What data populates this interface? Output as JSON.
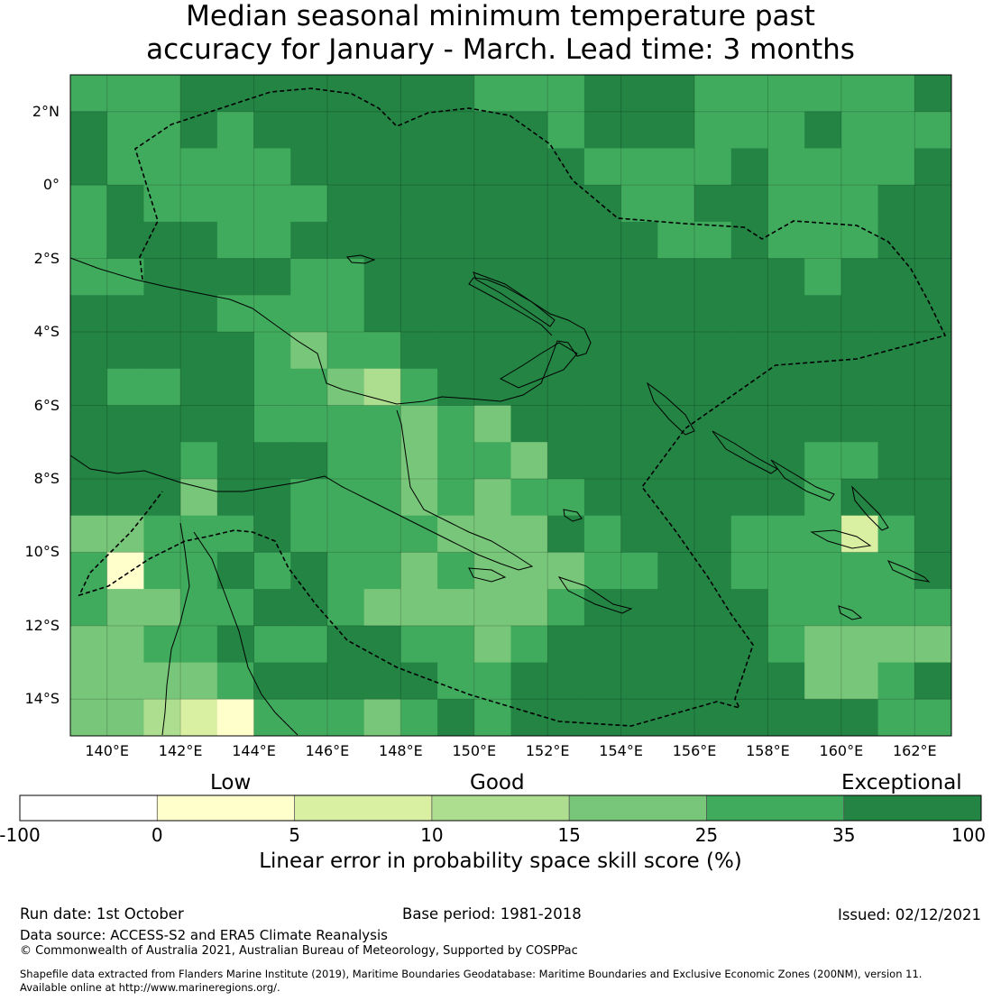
{
  "title": {
    "line1": "Median seasonal minimum temperature past",
    "line2": "accuracy for January - March. Lead time: 3 months"
  },
  "axes": {
    "lat_labels": [
      "2°N",
      "0°",
      "2°S",
      "4°S",
      "6°S",
      "8°S",
      "10°S",
      "12°S",
      "14°S"
    ],
    "lat_values": [
      2,
      0,
      -2,
      -4,
      -6,
      -8,
      -10,
      -12,
      -14
    ],
    "lon_labels": [
      "140°E",
      "142°E",
      "144°E",
      "146°E",
      "148°E",
      "150°E",
      "152°E",
      "154°E",
      "156°E",
      "158°E",
      "160°E",
      "162°E"
    ],
    "lon_values": [
      140,
      142,
      144,
      146,
      148,
      150,
      152,
      154,
      156,
      158,
      160,
      162
    ],
    "lon_range": [
      139.0,
      163.0
    ],
    "lat_range": [
      -15.0,
      3.0
    ]
  },
  "legend": {
    "categories": [
      "Low",
      "Good",
      "Exceptional"
    ],
    "ticks": [
      "-100",
      "0",
      "5",
      "10",
      "15",
      "25",
      "35",
      "100"
    ],
    "bins": [
      {
        "from": -100,
        "to": 0,
        "color": "#ffffff"
      },
      {
        "from": 0,
        "to": 5,
        "color": "#ffffcc"
      },
      {
        "from": 5,
        "to": 10,
        "color": "#d9f0a3"
      },
      {
        "from": 10,
        "to": 15,
        "color": "#addd8e"
      },
      {
        "from": 15,
        "to": 25,
        "color": "#78c679"
      },
      {
        "from": 25,
        "to": 35,
        "color": "#41ab5d"
      },
      {
        "from": 35,
        "to": 100,
        "color": "#238443"
      }
    ],
    "title": "Linear error in probability space skill score (%)"
  },
  "footer": {
    "run_date": "Run date: 1st October",
    "base_period": "Base period: 1981-2018",
    "issued": "Issued: 02/12/2021",
    "data_source": "Data source: ACCESS-S2 and ERA5 Climate Reanalysis",
    "copyright": "© Commonwealth of Australia 2021, Australian Bureau of Meteorology, Supported by COSPPac",
    "shapefile_line1": "Shapefile data extracted from Flanders Marine Institute (2019), Maritime Boundaries Geodatabase: Maritime Boundaries and Exclusive Economic Zones (200NM), version 11.",
    "shapefile_line2": "Available online at http://www.marineregions.org/."
  },
  "chart_data": {
    "type": "heatmap",
    "value_type": "LEPS skill score category index (0=-100..0, 1=0..5, 2=5..10, 3=10..15, 4=15..25, 5=25..35, 6=35..100)",
    "dominant_level": 6,
    "rows": 18,
    "cols": 24,
    "grid_origin": {
      "lon_west": 139.0,
      "lat_north": 3.0
    },
    "cell_size_deg": 1.0,
    "levels": [
      [
        5,
        5,
        5,
        6,
        6,
        6,
        6,
        6,
        6,
        6,
        6,
        5,
        5,
        5,
        6,
        6,
        6,
        5,
        5,
        5,
        5,
        5,
        5,
        6
      ],
      [
        6,
        5,
        5,
        6,
        5,
        6,
        6,
        6,
        6,
        6,
        6,
        6,
        6,
        5,
        6,
        6,
        6,
        5,
        5,
        5,
        6,
        5,
        5,
        5
      ],
      [
        6,
        5,
        5,
        5,
        5,
        5,
        6,
        6,
        6,
        6,
        6,
        6,
        6,
        6,
        5,
        5,
        5,
        5,
        6,
        5,
        5,
        5,
        5,
        6
      ],
      [
        5,
        6,
        5,
        5,
        5,
        5,
        5,
        6,
        6,
        6,
        6,
        6,
        6,
        6,
        6,
        5,
        5,
        6,
        6,
        5,
        5,
        5,
        6,
        6
      ],
      [
        5,
        6,
        6,
        6,
        5,
        5,
        6,
        6,
        6,
        6,
        6,
        6,
        6,
        6,
        6,
        6,
        5,
        5,
        6,
        5,
        5,
        5,
        6,
        6
      ],
      [
        5,
        5,
        6,
        6,
        6,
        6,
        5,
        5,
        6,
        6,
        6,
        6,
        6,
        6,
        6,
        6,
        6,
        6,
        6,
        6,
        5,
        6,
        6,
        6
      ],
      [
        6,
        6,
        6,
        6,
        5,
        5,
        5,
        5,
        6,
        6,
        6,
        6,
        6,
        6,
        6,
        6,
        6,
        6,
        6,
        6,
        6,
        6,
        6,
        6
      ],
      [
        6,
        6,
        6,
        6,
        6,
        5,
        4,
        5,
        5,
        6,
        6,
        6,
        6,
        6,
        6,
        6,
        6,
        6,
        6,
        6,
        6,
        6,
        6,
        6
      ],
      [
        6,
        5,
        5,
        6,
        6,
        5,
        5,
        4,
        3,
        5,
        6,
        6,
        6,
        6,
        6,
        6,
        6,
        6,
        6,
        6,
        6,
        6,
        6,
        6
      ],
      [
        6,
        6,
        6,
        6,
        6,
        5,
        5,
        5,
        5,
        4,
        5,
        4,
        6,
        6,
        6,
        6,
        6,
        6,
        6,
        6,
        6,
        6,
        6,
        6
      ],
      [
        6,
        6,
        6,
        5,
        6,
        6,
        6,
        5,
        5,
        4,
        5,
        5,
        4,
        6,
        6,
        6,
        6,
        6,
        6,
        6,
        5,
        5,
        6,
        6
      ],
      [
        6,
        6,
        6,
        4,
        6,
        6,
        5,
        5,
        5,
        4,
        5,
        4,
        5,
        5,
        6,
        6,
        6,
        6,
        6,
        6,
        5,
        6,
        6,
        6
      ],
      [
        4,
        4,
        5,
        5,
        5,
        6,
        5,
        5,
        5,
        5,
        4,
        4,
        4,
        6,
        5,
        6,
        6,
        6,
        5,
        5,
        5,
        2,
        5,
        6
      ],
      [
        5,
        1,
        5,
        5,
        6,
        5,
        6,
        5,
        5,
        4,
        5,
        4,
        4,
        4,
        5,
        5,
        6,
        6,
        5,
        5,
        5,
        5,
        5,
        6
      ],
      [
        5,
        4,
        4,
        5,
        5,
        6,
        6,
        5,
        4,
        4,
        4,
        4,
        4,
        5,
        6,
        6,
        6,
        6,
        6,
        5,
        5,
        5,
        5,
        5
      ],
      [
        4,
        4,
        5,
        5,
        6,
        5,
        5,
        6,
        6,
        5,
        5,
        4,
        5,
        6,
        6,
        6,
        6,
        6,
        6,
        5,
        4,
        4,
        4,
        4
      ],
      [
        4,
        4,
        4,
        4,
        5,
        6,
        6,
        6,
        6,
        6,
        5,
        5,
        6,
        6,
        6,
        6,
        6,
        6,
        6,
        6,
        4,
        4,
        5,
        6
      ],
      [
        4,
        4,
        3,
        2,
        1,
        5,
        5,
        5,
        4,
        5,
        6,
        5,
        6,
        6,
        6,
        6,
        6,
        6,
        6,
        6,
        6,
        6,
        5,
        5
      ]
    ]
  }
}
